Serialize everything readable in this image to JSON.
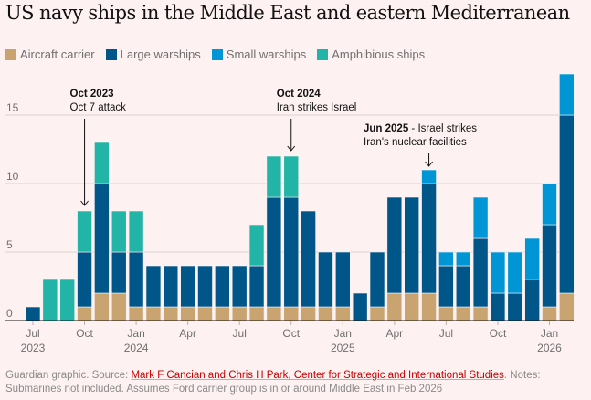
{
  "title": "US navy ships in the Middle East and eastern Mediterranean",
  "legend": [
    {
      "label": "Aircraft carrier",
      "color": "#c9a370"
    },
    {
      "label": "Large warships",
      "color": "#005689"
    },
    {
      "label": "Small warships",
      "color": "#0096d6"
    },
    {
      "label": "Amphibious ships",
      "color": "#22b4a7"
    }
  ],
  "footer": {
    "prefix": "Guardian graphic. Source: ",
    "source": "Mark F Cancian and Chris H Park, Center for Strategic and International Studies",
    "notes": ". Notes: Submarines not included. Assumes Ford carrier group is in or around Middle East in Feb 2026"
  },
  "chart_data": {
    "type": "bar",
    "stacked": true,
    "title": "US navy ships in the Middle East and eastern Mediterranean",
    "xlabel": "",
    "ylabel": "",
    "ylim": [
      0,
      18
    ],
    "yticks": [
      0,
      5,
      10,
      15
    ],
    "grid": true,
    "legend_position": "top-left",
    "categories": [
      "Jul 2023",
      "Aug 2023",
      "Sep 2023",
      "Oct 2023",
      "Nov 2023",
      "Dec 2023",
      "Jan 2024",
      "Feb 2024",
      "Mar 2024",
      "Apr 2024",
      "May 2024",
      "Jun 2024",
      "Jul 2024",
      "Aug 2024",
      "Sep 2024",
      "Oct 2024",
      "Nov 2024",
      "Dec 2024",
      "Jan 2025",
      "Feb 2025",
      "Mar 2025",
      "Apr 2025",
      "May 2025",
      "Jun 2025",
      "Jul 2025",
      "Aug 2025",
      "Sep 2025",
      "Oct 2025",
      "Nov 2025",
      "Dec 2025",
      "Jan 2026",
      "Feb 2026"
    ],
    "xticks": [
      {
        "index": 0,
        "label": "Jul",
        "year": "2023"
      },
      {
        "index": 3,
        "label": "Oct",
        "year": ""
      },
      {
        "index": 6,
        "label": "Jan",
        "year": "2024"
      },
      {
        "index": 9,
        "label": "Apr",
        "year": ""
      },
      {
        "index": 12,
        "label": "Jul",
        "year": ""
      },
      {
        "index": 15,
        "label": "Oct",
        "year": ""
      },
      {
        "index": 18,
        "label": "Jan",
        "year": "2025"
      },
      {
        "index": 21,
        "label": "Apr",
        "year": ""
      },
      {
        "index": 24,
        "label": "Jul",
        "year": ""
      },
      {
        "index": 27,
        "label": "Oct",
        "year": ""
      },
      {
        "index": 30,
        "label": "Jan",
        "year": "2026"
      }
    ],
    "series": [
      {
        "name": "Aircraft carrier",
        "color": "#c9a370",
        "values": [
          0,
          0,
          0,
          1,
          2,
          2,
          1,
          1,
          1,
          1,
          1,
          1,
          1,
          1,
          1,
          1,
          1,
          1,
          1,
          0,
          1,
          2,
          2,
          2,
          1,
          1,
          1,
          0,
          0,
          0,
          1,
          2
        ]
      },
      {
        "name": "Large warships",
        "color": "#005689",
        "values": [
          1,
          0,
          0,
          4,
          8,
          3,
          4,
          3,
          3,
          3,
          3,
          3,
          3,
          3,
          8,
          8,
          7,
          4,
          4,
          2,
          4,
          7,
          7,
          8,
          3,
          3,
          5,
          2,
          2,
          3,
          6,
          13
        ]
      },
      {
        "name": "Small warships",
        "color": "#0096d6",
        "values": [
          0,
          0,
          0,
          0,
          0,
          0,
          0,
          0,
          0,
          0,
          0,
          0,
          0,
          0,
          0,
          0,
          0,
          0,
          0,
          0,
          0,
          0,
          0,
          1,
          1,
          1,
          3,
          3,
          3,
          3,
          3,
          3
        ]
      },
      {
        "name": "Amphibious ships",
        "color": "#22b4a7",
        "values": [
          0,
          3,
          3,
          3,
          3,
          3,
          3,
          0,
          0,
          0,
          0,
          0,
          0,
          3,
          3,
          3,
          0,
          0,
          0,
          0,
          0,
          0,
          0,
          0,
          0,
          0,
          0,
          0,
          0,
          0,
          0,
          0
        ]
      }
    ],
    "annotations": [
      {
        "index": 3,
        "bold": "Oct 2023",
        "text": "Oct 7 attack",
        "multiline": true
      },
      {
        "index": 15,
        "bold": "Oct 2024",
        "text": "Iran strikes Israel",
        "multiline": true
      },
      {
        "index": 23,
        "bold": "Jun 2025",
        "text": " - Israel strikes",
        "text2": "Iran's nuclear facilities",
        "multiline": false
      }
    ]
  }
}
